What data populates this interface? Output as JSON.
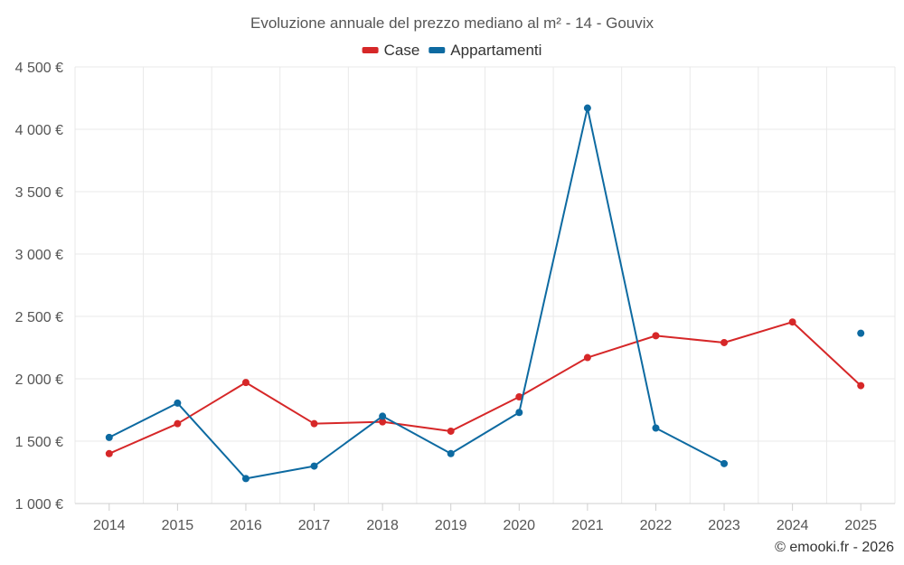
{
  "chart_data": {
    "type": "line",
    "title": "Evoluzione annuale del prezzo mediano al m² - 14 - Gouvix",
    "categories": [
      "2014",
      "2015",
      "2016",
      "2017",
      "2018",
      "2019",
      "2020",
      "2021",
      "2022",
      "2023",
      "2024",
      "2025"
    ],
    "ylim": [
      1000,
      4500
    ],
    "yticks": [
      1000,
      1500,
      2000,
      2500,
      3000,
      3500,
      4000,
      4500
    ],
    "ytick_labels": [
      "1 000 €",
      "1 500 €",
      "2 000 €",
      "2 500 €",
      "3 000 €",
      "3 500 €",
      "4 000 €",
      "4 500 €"
    ],
    "grid": true,
    "legend_position": "top-center",
    "series": [
      {
        "name": "Case",
        "color": "#d62728",
        "values": [
          1400,
          1640,
          1970,
          1640,
          1655,
          1580,
          1855,
          2170,
          2345,
          2290,
          2455,
          1945
        ]
      },
      {
        "name": "Appartamenti",
        "color": "#0d6aa1",
        "values": [
          1530,
          1805,
          1200,
          1300,
          1700,
          1400,
          1730,
          4170,
          1605,
          1320,
          null,
          2365
        ]
      }
    ],
    "credit": "© emooki.fr - 2026"
  }
}
